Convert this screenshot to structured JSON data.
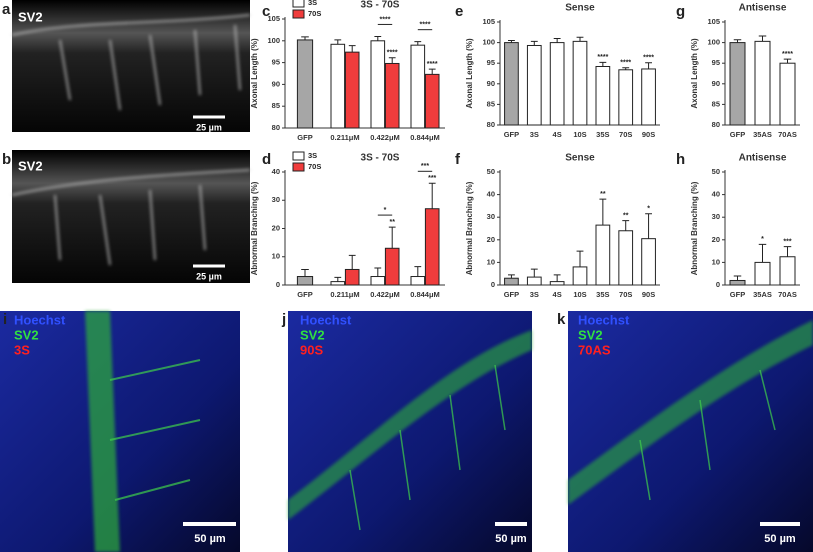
{
  "panels": [
    {
      "letter": "a",
      "labels": [
        "SV2"
      ],
      "scale": "25 µm"
    },
    {
      "letter": "b",
      "labels": [
        "SV2"
      ],
      "scale": "25 µm"
    },
    {
      "letter": "i",
      "labels": [
        "Hoechst",
        "SV2",
        "3S"
      ],
      "scale": "50 µm"
    },
    {
      "letter": "j",
      "labels": [
        "Hoechst",
        "SV2",
        "90S"
      ],
      "scale": "50 µm"
    },
    {
      "letter": "k",
      "labels": [
        "Hoechst",
        "SV2",
        "70AS"
      ],
      "scale": "50 µm"
    }
  ],
  "chart_data": [
    {
      "type": "bar",
      "panel": "c",
      "title": "3S - 70S",
      "ylabel": "Axonal Length (%)",
      "categories": [
        "GFP",
        "0.211μM",
        "0.422μM",
        "0.844μM"
      ],
      "control": {
        "value": 100.2,
        "error": 0.7,
        "color": "#a6a6a6"
      },
      "series": [
        {
          "name": "3S",
          "color": "#ffffff",
          "values": [
            null,
            99.2,
            100,
            99
          ],
          "errors": [
            null,
            1,
            1,
            0.8
          ],
          "significance": [
            null,
            null,
            null,
            null
          ]
        },
        {
          "name": "70S",
          "color": "#f03c3c",
          "values": [
            null,
            97.4,
            94.8,
            92.3
          ],
          "errors": [
            null,
            1.5,
            1.3,
            1.2
          ],
          "significance": [
            null,
            null,
            "****",
            "****"
          ]
        }
      ],
      "comparisons": [
        null,
        null,
        "****",
        "****"
      ],
      "ylim": [
        80,
        105
      ],
      "yticks": [
        80,
        85,
        90,
        95,
        100,
        105
      ]
    },
    {
      "type": "bar",
      "panel": "d",
      "title": "3S - 70S",
      "ylabel": "Abnormal Branching (%)",
      "categories": [
        "GFP",
        "0.211μM",
        "0.422μM",
        "0.844μM"
      ],
      "control": {
        "value": 3,
        "error": 2.5,
        "color": "#a6a6a6"
      },
      "series": [
        {
          "name": "3S",
          "color": "#ffffff",
          "values": [
            null,
            1.2,
            3,
            3
          ],
          "errors": [
            null,
            1.5,
            3,
            3.5
          ],
          "significance": [
            null,
            null,
            null,
            null
          ]
        },
        {
          "name": "70S",
          "color": "#f03c3c",
          "values": [
            null,
            5.5,
            13,
            27
          ],
          "errors": [
            null,
            5,
            7.5,
            9
          ],
          "significance": [
            null,
            null,
            "**",
            "***"
          ]
        }
      ],
      "comparisons": [
        null,
        null,
        "*",
        "***"
      ],
      "ylim": [
        0,
        40
      ],
      "yticks": [
        0,
        10,
        20,
        30,
        40
      ]
    },
    {
      "type": "bar",
      "panel": "e",
      "title": "Sense",
      "ylabel": "Axonal Length (%)",
      "categories": [
        "GFP",
        "3S",
        "4S",
        "10S",
        "35S",
        "70S",
        "90S"
      ],
      "values": [
        100,
        99.3,
        100,
        100.3,
        94.2,
        93.4,
        93.6
      ],
      "errors": [
        0.5,
        1,
        1,
        1,
        1,
        0.5,
        1.5
      ],
      "colors": [
        "#a6a6a6",
        "#ffffff",
        "#ffffff",
        "#ffffff",
        "#ffffff",
        "#ffffff",
        "#ffffff"
      ],
      "significance": [
        null,
        null,
        null,
        null,
        "****",
        "****",
        "****"
      ],
      "ylim": [
        80,
        105
      ],
      "yticks": [
        80,
        85,
        90,
        95,
        100,
        105
      ]
    },
    {
      "type": "bar",
      "panel": "f",
      "title": "Sense",
      "ylabel": "Abnormal Branching (%)",
      "categories": [
        "GFP",
        "3S",
        "4S",
        "10S",
        "35S",
        "70S",
        "90S"
      ],
      "values": [
        3,
        3.5,
        1.5,
        8,
        26.5,
        24,
        20.5
      ],
      "errors": [
        1.5,
        3.5,
        3,
        7,
        11.5,
        4.5,
        11
      ],
      "colors": [
        "#a6a6a6",
        "#ffffff",
        "#ffffff",
        "#ffffff",
        "#ffffff",
        "#ffffff",
        "#ffffff"
      ],
      "significance": [
        null,
        null,
        null,
        null,
        "**",
        "**",
        "*"
      ],
      "ylim": [
        0,
        50
      ],
      "yticks": [
        0,
        10,
        20,
        30,
        40,
        50
      ]
    },
    {
      "type": "bar",
      "panel": "g",
      "title": "Antisense",
      "ylabel": "Axonal Length (%)",
      "categories": [
        "GFP",
        "35AS",
        "70AS"
      ],
      "values": [
        100,
        100.3,
        95
      ],
      "errors": [
        0.7,
        1.3,
        1
      ],
      "colors": [
        "#a6a6a6",
        "#ffffff",
        "#ffffff"
      ],
      "significance": [
        null,
        null,
        "****"
      ],
      "ylim": [
        80,
        105
      ],
      "yticks": [
        80,
        85,
        90,
        95,
        100,
        105
      ]
    },
    {
      "type": "bar",
      "panel": "h",
      "title": "Antisense",
      "ylabel": "Abnormal Branching (%)",
      "categories": [
        "GFP",
        "35AS",
        "70AS"
      ],
      "values": [
        2,
        10,
        12.5
      ],
      "errors": [
        2,
        8,
        4.5
      ],
      "colors": [
        "#a6a6a6",
        "#ffffff",
        "#ffffff"
      ],
      "significance": [
        null,
        "*",
        "***"
      ],
      "ylim": [
        0,
        50
      ],
      "yticks": [
        0,
        10,
        20,
        30,
        40,
        50
      ]
    }
  ]
}
